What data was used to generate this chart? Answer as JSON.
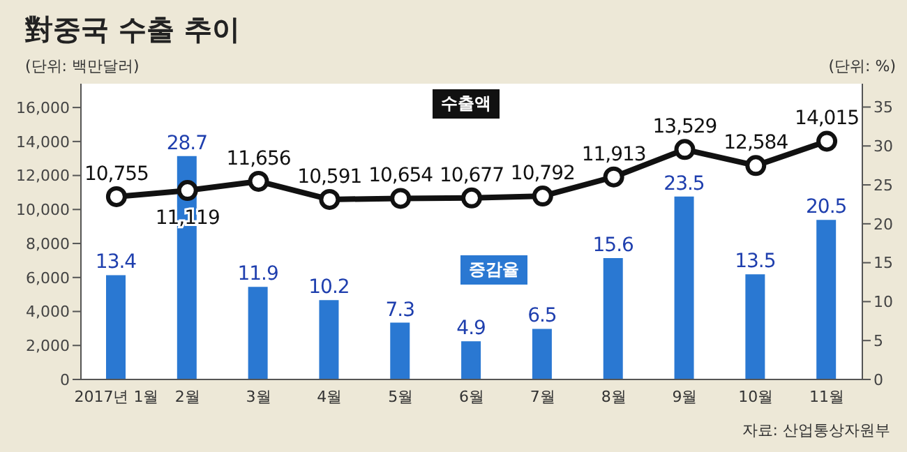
{
  "chart_data": {
    "type": "bar",
    "title": "對중국 수출 추이",
    "ylabel": "(단위: 백만달러)",
    "y2label": "(단위: %)",
    "annotations": [
      "자료: 산업통상자원부"
    ],
    "categories": [
      "2017년 1월",
      "2월",
      "3월",
      "4월",
      "5월",
      "6월",
      "7월",
      "8월",
      "9월",
      "10월",
      "11월"
    ],
    "series": [
      {
        "name": "증감율",
        "axis": "y2",
        "color": "#2a78d2",
        "values": [
          13.4,
          28.7,
          11.9,
          10.2,
          7.3,
          4.9,
          6.5,
          15.6,
          23.5,
          13.5,
          20.5
        ]
      },
      {
        "name": "수출액",
        "type": "line",
        "color": "#111111",
        "marker": "circle",
        "values": [
          10755,
          11119,
          11656,
          10591,
          10654,
          10677,
          10792,
          11913,
          13529,
          12584,
          14015
        ],
        "value_labels": [
          "10,755",
          "11,119",
          "11,656",
          "10,591",
          "10,654",
          "10,677",
          "10,792",
          "11,913",
          "13,529",
          "12,584",
          "14,015"
        ]
      }
    ],
    "ylim": [
      0,
      17400
    ],
    "yticks": [
      0,
      {
        "value": 2000,
        "label": "2,000"
      },
      {
        "value": 4000,
        "label": "4,000"
      },
      {
        "value": 6000,
        "label": "6,000"
      },
      {
        "value": 8000,
        "label": "8,000"
      },
      {
        "value": 10000,
        "label": "10,000"
      },
      {
        "value": 12000,
        "label": "12,000"
      },
      {
        "value": 14000,
        "label": "14,000"
      },
      {
        "value": 16000,
        "label": "16,000"
      }
    ],
    "y2lim": [
      0,
      38
    ],
    "y2ticks": [
      0,
      5,
      10,
      15,
      20,
      25,
      30,
      35
    ],
    "data_labels": true,
    "legend": false,
    "grid": false
  }
}
